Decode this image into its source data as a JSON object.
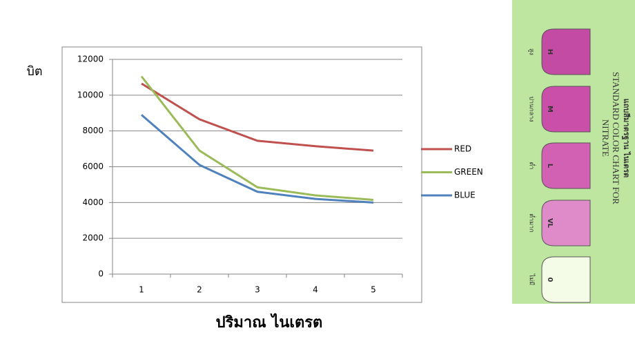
{
  "chart_data": {
    "type": "line",
    "y_label": "บิต",
    "x_label": "ปริมาณ ไนเตรต",
    "categories": [
      "1",
      "2",
      "3",
      "4",
      "5"
    ],
    "series": [
      {
        "name": "RED",
        "color": "#c0504d",
        "values": [
          10650,
          8650,
          7450,
          7150,
          6900
        ]
      },
      {
        "name": "GREEN",
        "color": "#9bbb59",
        "values": [
          11050,
          6900,
          4850,
          4400,
          4150
        ]
      },
      {
        "name": "BLUE",
        "color": "#4f81bd",
        "values": [
          8900,
          6100,
          4600,
          4200,
          4000
        ]
      }
    ],
    "ylim": [
      0,
      12000
    ],
    "yticks": [
      0,
      2000,
      4000,
      6000,
      8000,
      10000,
      12000
    ],
    "grid": true,
    "legend": "right"
  },
  "color_card": {
    "title": [
      "แถบสีมาตรฐาน ไนเตรต",
      "STANDARD COLOR CHART FOR",
      "NITRATE"
    ],
    "levels": [
      {
        "code": "H",
        "label": "สูง"
      },
      {
        "code": "M",
        "label": "ปานกลาง"
      },
      {
        "code": "L",
        "label": "ต่ำ"
      },
      {
        "code": "VL",
        "label": "ต่ำมาก"
      },
      {
        "code": "0",
        "label": "ไม่มี"
      }
    ]
  }
}
